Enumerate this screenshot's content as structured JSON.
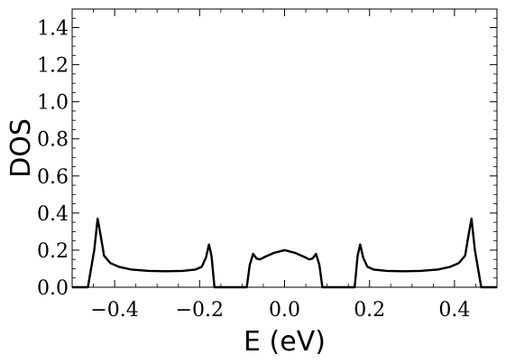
{
  "chart_data": {
    "type": "line",
    "title": "",
    "xlabel": "E (eV)",
    "ylabel": "DOS",
    "xlim": [
      -0.5,
      0.5
    ],
    "ylim": [
      0,
      1.5
    ],
    "grid": false,
    "frame": true,
    "x_ticks": [
      {
        "value": -0.4,
        "label": "−0.4"
      },
      {
        "value": -0.2,
        "label": "−0.2"
      },
      {
        "value": 0.0,
        "label": "0.0"
      },
      {
        "value": 0.2,
        "label": "0.2"
      },
      {
        "value": 0.4,
        "label": "0.4"
      }
    ],
    "y_ticks": [
      {
        "value": 0.0,
        "label": "0.0"
      },
      {
        "value": 0.2,
        "label": "0.2"
      },
      {
        "value": 0.4,
        "label": "0.4"
      },
      {
        "value": 0.6,
        "label": "0.6"
      },
      {
        "value": 0.8,
        "label": "0.8"
      },
      {
        "value": 1.0,
        "label": "1.0"
      },
      {
        "value": 1.2,
        "label": "1.2"
      },
      {
        "value": 1.4,
        "label": "1.4"
      }
    ],
    "series": [
      {
        "color": "#000000",
        "points": [
          [
            -0.463,
            0.0
          ],
          [
            -0.448,
            0.2
          ],
          [
            -0.44,
            0.37
          ],
          [
            -0.433,
            0.28
          ],
          [
            -0.425,
            0.17
          ],
          [
            -0.41,
            0.13
          ],
          [
            -0.39,
            0.11
          ],
          [
            -0.36,
            0.095
          ],
          [
            -0.32,
            0.088
          ],
          [
            -0.28,
            0.086
          ],
          [
            -0.24,
            0.088
          ],
          [
            -0.21,
            0.095
          ],
          [
            -0.195,
            0.11
          ],
          [
            -0.185,
            0.16
          ],
          [
            -0.178,
            0.23
          ],
          [
            -0.172,
            0.17
          ],
          [
            -0.165,
            0.0
          ],
          [
            -0.089,
            0.0
          ],
          [
            -0.082,
            0.12
          ],
          [
            -0.074,
            0.18
          ],
          [
            -0.066,
            0.155
          ],
          [
            -0.058,
            0.15
          ],
          [
            -0.045,
            0.165
          ],
          [
            -0.025,
            0.185
          ],
          [
            0.0,
            0.2
          ],
          [
            0.025,
            0.185
          ],
          [
            0.045,
            0.165
          ],
          [
            0.058,
            0.15
          ],
          [
            0.066,
            0.155
          ],
          [
            0.074,
            0.18
          ],
          [
            0.082,
            0.12
          ],
          [
            0.089,
            0.0
          ],
          [
            0.165,
            0.0
          ],
          [
            0.172,
            0.17
          ],
          [
            0.178,
            0.23
          ],
          [
            0.185,
            0.16
          ],
          [
            0.195,
            0.11
          ],
          [
            0.21,
            0.095
          ],
          [
            0.24,
            0.088
          ],
          [
            0.28,
            0.086
          ],
          [
            0.32,
            0.088
          ],
          [
            0.36,
            0.095
          ],
          [
            0.39,
            0.11
          ],
          [
            0.41,
            0.13
          ],
          [
            0.425,
            0.17
          ],
          [
            0.433,
            0.28
          ],
          [
            0.44,
            0.37
          ],
          [
            0.448,
            0.2
          ],
          [
            0.463,
            0.0
          ]
        ]
      }
    ]
  }
}
